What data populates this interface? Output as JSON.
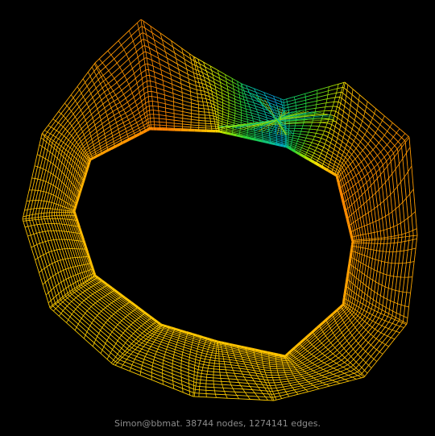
{
  "caption": "Simon@bbmat. 38744 nodes, 1274141 edges.",
  "colors": {
    "background": "#000000",
    "caption": "#8c8c8c",
    "edge_palette": [
      "#ff4a00",
      "#ff8c00",
      "#ffc200",
      "#f5e600",
      "#9be000",
      "#22d33a",
      "#00b4b4",
      "#1e4bff"
    ]
  }
}
